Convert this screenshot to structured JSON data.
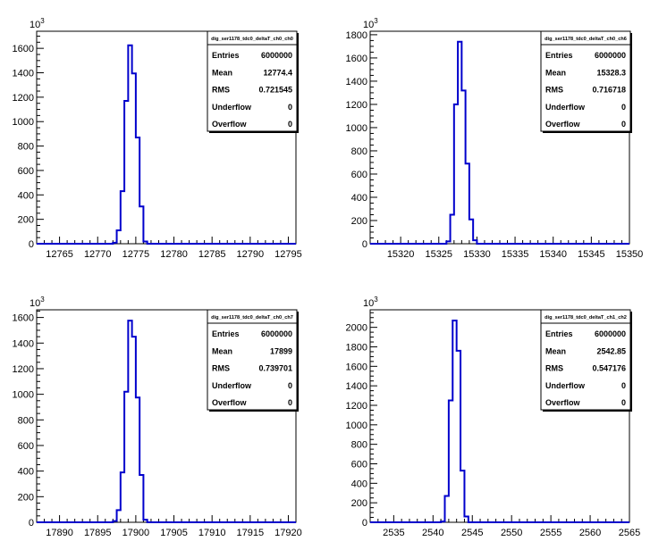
{
  "chart_data": [
    {
      "type": "bar",
      "stats_title": "dig_ser1178_tdc0_deltaT_ch0_ch0",
      "stats": [
        {
          "label": "Entries",
          "value": "6000000"
        },
        {
          "label": "Mean",
          "value": "12774.4"
        },
        {
          "label": "RMS",
          "value": "0.721545"
        },
        {
          "label": "Underflow",
          "value": "0"
        },
        {
          "label": "Overflow",
          "value": "0"
        }
      ],
      "y_exponent": "10^3",
      "x_ticks": [
        "12765",
        "12770",
        "12775",
        "12780",
        "12785",
        "12790",
        "12795"
      ],
      "y_ticks": [
        "0",
        "200",
        "400",
        "600",
        "800",
        "1000",
        "1200",
        "1400",
        "1600"
      ],
      "xlim": [
        12762,
        12796
      ],
      "ylim": [
        0,
        1740
      ],
      "bin_width": 0.5,
      "x": [
        12772.0,
        12772.5,
        12773.0,
        12773.5,
        12774.0,
        12774.5,
        12775.0,
        12775.5,
        12776.0,
        12776.5
      ],
      "values": [
        8,
        110,
        430,
        1170,
        1625,
        1395,
        870,
        305,
        18,
        0
      ]
    },
    {
      "type": "bar",
      "stats_title": "dig_ser1178_tdc0_deltaT_ch0_ch6",
      "stats": [
        {
          "label": "Entries",
          "value": "6000000"
        },
        {
          "label": "Mean",
          "value": "15328.3"
        },
        {
          "label": "RMS",
          "value": "0.716718"
        },
        {
          "label": "Underflow",
          "value": "0"
        },
        {
          "label": "Overflow",
          "value": "0"
        }
      ],
      "y_exponent": "10^3",
      "x_ticks": [
        "15320",
        "15325",
        "15330",
        "15335",
        "15340",
        "15345",
        "15350"
      ],
      "y_ticks": [
        "0",
        "200",
        "400",
        "600",
        "800",
        "1000",
        "1200",
        "1400",
        "1600",
        "1800"
      ],
      "xlim": [
        15316,
        15350
      ],
      "ylim": [
        0,
        1830
      ],
      "bin_width": 0.5,
      "x": [
        15326.0,
        15326.5,
        15327.0,
        15327.5,
        15328.0,
        15328.5,
        15329.0,
        15329.5,
        15330.0,
        15330.5
      ],
      "values": [
        20,
        250,
        1200,
        1740,
        1320,
        690,
        210,
        30,
        0,
        0
      ]
    },
    {
      "type": "bar",
      "stats_title": "dig_ser1178_tdc0_deltaT_ch0_ch7",
      "stats": [
        {
          "label": "Entries",
          "value": "6000000"
        },
        {
          "label": "Mean",
          "value": "17899"
        },
        {
          "label": "RMS",
          "value": "0.739701"
        },
        {
          "label": "Underflow",
          "value": "0"
        },
        {
          "label": "Overflow",
          "value": "0"
        }
      ],
      "y_exponent": "10^3",
      "x_ticks": [
        "17890",
        "17895",
        "17900",
        "17905",
        "17910",
        "17915",
        "17920"
      ],
      "y_ticks": [
        "0",
        "200",
        "400",
        "600",
        "800",
        "1000",
        "1200",
        "1400",
        "1600"
      ],
      "xlim": [
        17887,
        17921
      ],
      "ylim": [
        0,
        1660
      ],
      "bin_width": 0.5,
      "x": [
        17897.0,
        17897.5,
        17898.0,
        17898.5,
        17899.0,
        17899.5,
        17900.0,
        17900.5,
        17901.0
      ],
      "values": [
        10,
        95,
        390,
        1020,
        1575,
        1450,
        975,
        370,
        20
      ]
    },
    {
      "type": "bar",
      "stats_title": "dig_ser1178_tdc0_deltaT_ch1_ch2",
      "stats": [
        {
          "label": "Entries",
          "value": "6000000"
        },
        {
          "label": "Mean",
          "value": "2542.85"
        },
        {
          "label": "RMS",
          "value": "0.547176"
        },
        {
          "label": "Underflow",
          "value": "0"
        },
        {
          "label": "Overflow",
          "value": "0"
        }
      ],
      "y_exponent": "10^3",
      "x_ticks": [
        "2535",
        "2540",
        "2545",
        "2550",
        "2555",
        "2560",
        "2565"
      ],
      "y_ticks": [
        "0",
        "200",
        "400",
        "600",
        "800",
        "1000",
        "1200",
        "1400",
        "1600",
        "1800",
        "2000"
      ],
      "xlim": [
        2532,
        2565
      ],
      "ylim": [
        0,
        2180
      ],
      "bin_width": 0.5,
      "x": [
        2541.0,
        2541.5,
        2542.0,
        2542.5,
        2543.0,
        2543.5,
        2544.0,
        2544.5,
        2545.0
      ],
      "values": [
        8,
        270,
        1250,
        2070,
        1760,
        530,
        60,
        0,
        0
      ]
    }
  ]
}
